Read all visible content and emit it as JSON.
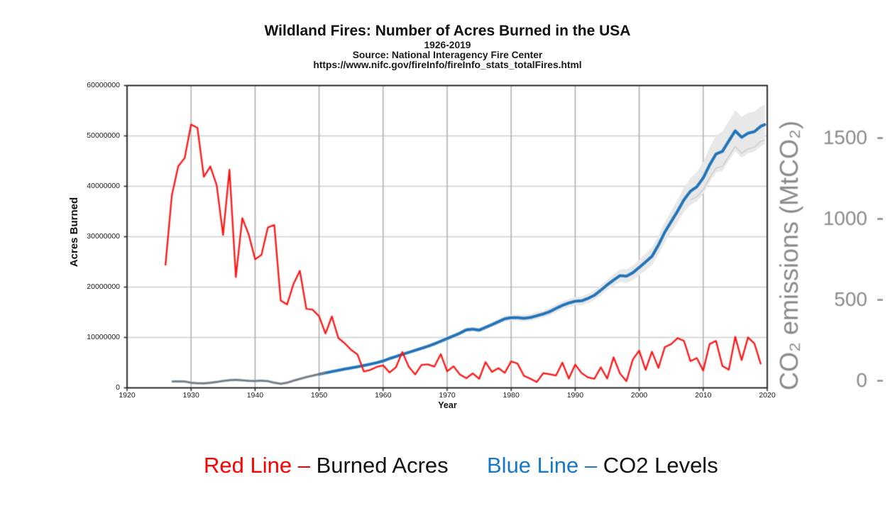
{
  "title": "Wildland Fires: Number of Acres Burned in the USA",
  "subtitle": "1926-2019",
  "source_line": "Source: National Interagency Fire Center",
  "url_line": "https://www.nifc.gov/fireInfo/fireInfo_stats_totalFires.html",
  "legend": {
    "red_name": "Red Line – ",
    "red_desc": "Burned Acres",
    "blue_name": "Blue Line – ",
    "blue_desc": "CO2 Levels"
  },
  "colors": {
    "red_line": "#f81414",
    "blue_line": "#2173b8",
    "early_gray_line": "#7b7d7e",
    "band": "#e8e8e8",
    "grid_h": "#cdcdcd",
    "grid_v": "#b3b3b3",
    "frame": "#2a2a2a",
    "right_axis_gray": "#8a8a8a",
    "legend_red": "#fe0000",
    "legend_blue": "#1779c4"
  },
  "chart_data": {
    "type": "line",
    "title": "Wildland Fires: Number of Acres Burned in the USA",
    "subtitle": "1926-2019",
    "source": "Source: National Interagency Fire Center",
    "url": "https://www.nifc.gov/fireInfo/fireInfo_stats_totalFires.html",
    "xlabel": "Year",
    "ylabel_left": "Acres Burned",
    "ylabel_right": "CO₂ emissions (MtCO₂)",
    "xlim": [
      1920,
      2020
    ],
    "ylim_left": [
      0,
      60000000
    ],
    "ylim_right_ticks_span": [
      0,
      1500
    ],
    "x_ticks": [
      1920,
      1930,
      1940,
      1950,
      1960,
      1970,
      1980,
      1990,
      2000,
      2010,
      2020
    ],
    "y_ticks_left": [
      0,
      10000000,
      20000000,
      30000000,
      40000000,
      50000000,
      60000000
    ],
    "y_ticks_right": [
      0,
      500,
      1000,
      1500
    ],
    "grid": true,
    "legend_position": "bottom",
    "series": [
      {
        "name": "Burned Acres",
        "axis": "left",
        "style": "red",
        "x": [
          1926,
          1927,
          1928,
          1929,
          1930,
          1931,
          1932,
          1933,
          1934,
          1935,
          1936,
          1937,
          1938,
          1939,
          1940,
          1941,
          1942,
          1943,
          1944,
          1945,
          1946,
          1947,
          1948,
          1949,
          1950,
          1951,
          1952,
          1953,
          1954,
          1955,
          1956,
          1957,
          1958,
          1959,
          1960,
          1961,
          1962,
          1963,
          1964,
          1965,
          1966,
          1967,
          1968,
          1969,
          1970,
          1971,
          1972,
          1973,
          1974,
          1975,
          1976,
          1977,
          1978,
          1979,
          1980,
          1981,
          1982,
          1983,
          1984,
          1985,
          1986,
          1987,
          1988,
          1989,
          1990,
          1991,
          1992,
          1993,
          1994,
          1995,
          1996,
          1997,
          1998,
          1999,
          2000,
          2001,
          2002,
          2003,
          2004,
          2005,
          2006,
          2007,
          2008,
          2009,
          2010,
          2011,
          2012,
          2013,
          2014,
          2015,
          2016,
          2017,
          2018,
          2019
        ],
        "values": [
          24300000,
          38200000,
          44000000,
          45600000,
          52270000,
          51610000,
          41880000,
          43940000,
          40210000,
          30340000,
          43330000,
          21980000,
          33690000,
          30450000,
          25500000,
          26400000,
          31850000,
          32330000,
          17330000,
          16550000,
          20640000,
          23230000,
          15700000,
          15500000,
          14200000,
          10780000,
          14190000,
          9890000,
          8840000,
          7550000,
          6610000,
          3240000,
          3570000,
          4150000,
          4480000,
          3040000,
          4080000,
          7120000,
          4200000,
          2650000,
          4570000,
          4660000,
          4230000,
          6690000,
          3280000,
          4280000,
          2640000,
          1920000,
          2880000,
          1790000,
          5110000,
          3150000,
          3910000,
          2990000,
          5260000,
          4810000,
          2380000,
          1820000,
          1150000,
          2900000,
          2720000,
          2450000,
          5010000,
          1830000,
          4620000,
          2950000,
          2070000,
          1800000,
          4070000,
          1840000,
          6070000,
          2860000,
          1330000,
          5630000,
          7380000,
          3570000,
          7180000,
          3960000,
          8100000,
          8690000,
          9870000,
          9330000,
          5290000,
          5920000,
          3420000,
          8710000,
          9330000,
          4320000,
          3600000,
          10130000,
          5510000,
          10030000,
          8770000,
          4660000
        ]
      },
      {
        "name": "CO2 Levels",
        "axis": "right",
        "style": "blue",
        "gray_until": 1951,
        "x": [
          1927,
          1928,
          1929,
          1930,
          1931,
          1932,
          1933,
          1934,
          1935,
          1936,
          1937,
          1938,
          1939,
          1940,
          1941,
          1942,
          1943,
          1944,
          1945,
          1946,
          1947,
          1948,
          1949,
          1950,
          1951,
          1952,
          1953,
          1954,
          1955,
          1956,
          1957,
          1958,
          1959,
          1960,
          1961,
          1962,
          1963,
          1964,
          1965,
          1966,
          1967,
          1968,
          1969,
          1970,
          1971,
          1972,
          1973,
          1974,
          1975,
          1976,
          1977,
          1978,
          1979,
          1980,
          1981,
          1982,
          1983,
          1984,
          1985,
          1986,
          1987,
          1988,
          1989,
          1990,
          1991,
          1992,
          1993,
          1994,
          1995,
          1996,
          1997,
          1998,
          1999,
          2000,
          2001,
          2002,
          2003,
          2004,
          2005,
          2006,
          2007,
          2008,
          2009,
          2010,
          2011,
          2012,
          2013,
          2014,
          2015,
          2016,
          2017,
          2018,
          2019,
          2019.6
        ],
        "values": [
          0,
          1,
          0,
          -8,
          -11,
          -12,
          -8,
          -3,
          3,
          8,
          10,
          7,
          4,
          3,
          5,
          2,
          -8,
          -14,
          -8,
          5,
          16,
          27,
          36,
          45,
          53,
          61,
          69,
          77,
          84,
          91,
          99,
          107,
          116,
          127,
          142,
          154,
          168,
          180,
          193,
          205,
          218,
          233,
          249,
          266,
          282,
          299,
          320,
          324,
          318,
          335,
          352,
          370,
          388,
          395,
          395,
          391,
          396,
          407,
          418,
          432,
          452,
          471,
          486,
          497,
          499,
          514,
          534,
          565,
          598,
          628,
          655,
          652,
          673,
          706,
          740,
          775,
          845,
          925,
          990,
          1055,
          1125,
          1178,
          1205,
          1260,
          1340,
          1408,
          1425,
          1490,
          1552,
          1512,
          1537,
          1547,
          1580,
          1590
        ],
        "uncertainty_band_halfwidth_anchors": [
          [
            1927,
            7
          ],
          [
            1950,
            9
          ],
          [
            1965,
            11
          ],
          [
            1975,
            15
          ],
          [
            1985,
            22
          ],
          [
            1990,
            26
          ],
          [
            1995,
            33
          ],
          [
            2000,
            48
          ],
          [
            2004,
            62
          ],
          [
            2007,
            75
          ],
          [
            2009,
            90
          ],
          [
            2011,
            108
          ],
          [
            2013,
            122
          ],
          [
            2016,
            127
          ],
          [
            2019.6,
            122
          ]
        ]
      }
    ]
  }
}
